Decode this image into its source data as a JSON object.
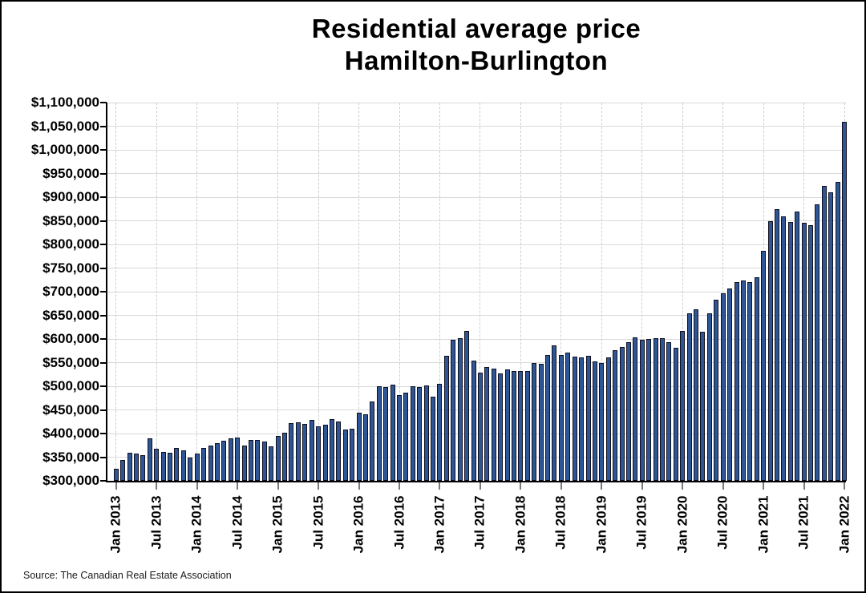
{
  "title": {
    "line1": "Residential average price",
    "line2": "Hamilton-Burlington"
  },
  "source": "Source: The Canadian Real Estate Association",
  "chart_data": {
    "type": "bar",
    "title": "Residential average price Hamilton-Burlington",
    "ylabel": "",
    "xlabel": "",
    "unit": "CAD $",
    "frequency": "monthly",
    "start": "Jan 2013",
    "end": "Jan 2022",
    "y_axis": {
      "min": 300000,
      "max": 1100000,
      "step": 50000
    },
    "grid": "horizontal solid, vertical dashed at Jan/Jul",
    "legend": "none",
    "y_tick_labels": [
      "$300,000",
      "$350,000",
      "$400,000",
      "$450,000",
      "$500,000",
      "$550,000",
      "$600,000",
      "$650,000",
      "$700,000",
      "$750,000",
      "$800,000",
      "$850,000",
      "$900,000",
      "$950,000",
      "$1,000,000",
      "$1,050,000",
      "$1,100,000"
    ],
    "x_tick_labels": [
      "Jan 2013",
      "Jul 2013",
      "Jan 2014",
      "Jul 2014",
      "Jan 2015",
      "Jul 2015",
      "Jan 2016",
      "Jul 2016",
      "Jan 2017",
      "Jul 2017",
      "Jan 2018",
      "Jul 2018",
      "Jan 2019",
      "Jul 2019",
      "Jan 2020",
      "Jul 2020",
      "Jan 2021",
      "Jul 2021",
      "Jan 2022"
    ],
    "series": [
      {
        "name": "Residential average price",
        "values": [
          325000,
          343500,
          360000,
          358000,
          354000,
          389000,
          367000,
          361500,
          359000,
          369500,
          364000,
          350000,
          357500,
          370000,
          374000,
          380000,
          385000,
          389000,
          391500,
          375000,
          387000,
          386000,
          383000,
          372500,
          395500,
          401500,
          422000,
          423500,
          420000,
          428500,
          414500,
          419000,
          430500,
          425000,
          409000,
          410500,
          443500,
          440000,
          468000,
          500000,
          498500,
          503000,
          481000,
          487000,
          500500,
          498000,
          501500,
          478500,
          505000,
          564000,
          598000,
          602000,
          616500,
          554000,
          528500,
          541000,
          538000,
          527000,
          535000,
          533000,
          533000,
          533000,
          549000,
          547500,
          566500,
          586000,
          566500,
          570500,
          563000,
          561500,
          565000,
          553000,
          549000,
          561000,
          576000,
          583000,
          593000,
          603000,
          599000,
          600000,
          601000,
          602000,
          593000,
          581000,
          617000,
          654000,
          662000,
          615000,
          655000,
          683000,
          696000,
          707000,
          721000,
          724000,
          721000,
          730000,
          786000,
          849000,
          874000,
          859000,
          847000,
          869000,
          845000,
          841000,
          884000,
          923000,
          910000,
          933000,
          1060000
        ]
      }
    ],
    "colors": {
      "bar_fill": "#2e5696",
      "bar_border": "#10101e",
      "gridline": "#d9d9d9",
      "vgrid_dashed": "#cccccc",
      "axis_line": "#000000",
      "x_tick_mark": "#7a7a7a",
      "text": "#000000",
      "background": "#ffffff"
    }
  }
}
